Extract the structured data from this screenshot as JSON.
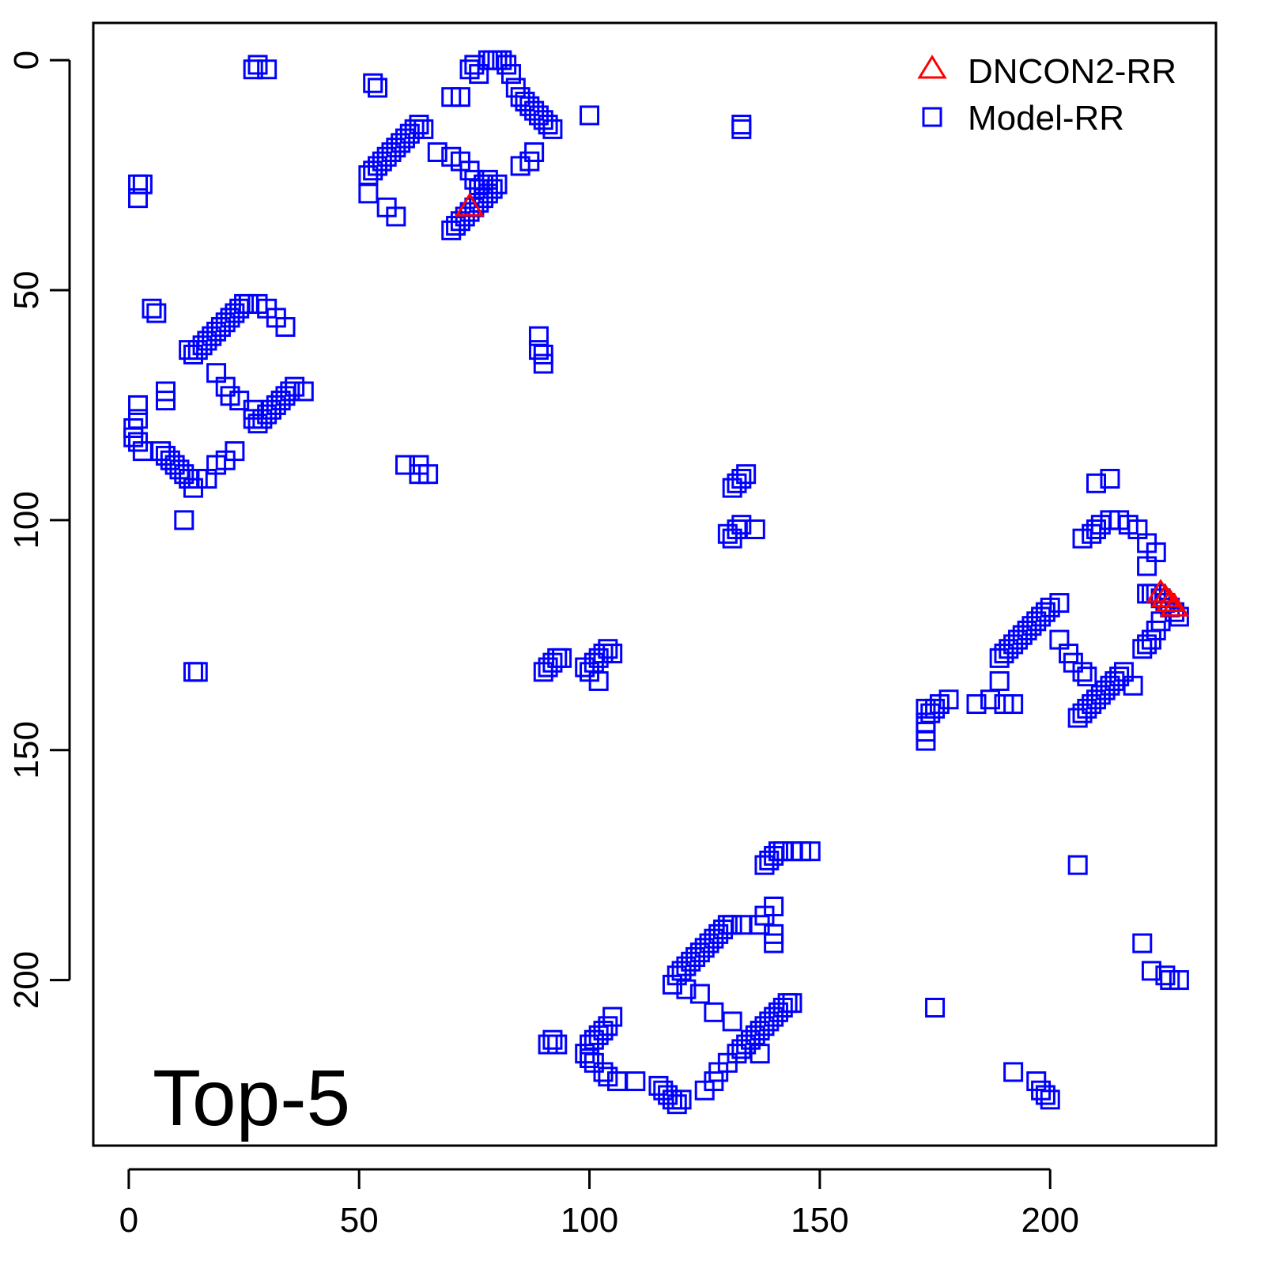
{
  "chart_data": {
    "type": "scatter",
    "title": "",
    "xlabel": "",
    "ylabel": "",
    "panel_label": "Top-5",
    "xlim": [
      -7.7,
      236
    ],
    "ylim": [
      236,
      -8.1
    ],
    "y_reversed": true,
    "grid": false,
    "legend_position": "top-right",
    "x_ticks": [
      0,
      50,
      100,
      150,
      200
    ],
    "y_ticks": [
      0,
      50,
      100,
      150,
      200
    ],
    "series": [
      {
        "name": "DNCON2-RR",
        "marker": "triangle",
        "color": "#ff0000",
        "points": [
          [
            74,
            32
          ],
          [
            224,
            116
          ],
          [
            225,
            117
          ],
          [
            226,
            118
          ],
          [
            227,
            119
          ]
        ]
      },
      {
        "name": "Model-RR",
        "marker": "square",
        "color": "#0000ff",
        "points": [
          [
            27,
            2
          ],
          [
            28,
            1
          ],
          [
            30,
            2
          ],
          [
            53,
            5
          ],
          [
            54,
            6
          ],
          [
            52,
            25
          ],
          [
            53,
            24
          ],
          [
            54,
            23
          ],
          [
            55,
            22
          ],
          [
            56,
            21
          ],
          [
            57,
            20
          ],
          [
            58,
            19
          ],
          [
            59,
            18
          ],
          [
            60,
            17
          ],
          [
            61,
            16
          ],
          [
            62,
            15
          ],
          [
            63,
            14
          ],
          [
            64,
            15
          ],
          [
            52,
            29
          ],
          [
            56,
            32
          ],
          [
            58,
            34
          ],
          [
            67,
            20
          ],
          [
            70,
            21
          ],
          [
            72,
            22
          ],
          [
            74,
            24
          ],
          [
            75,
            26
          ],
          [
            76,
            28
          ],
          [
            77,
            27
          ],
          [
            78,
            26
          ],
          [
            80,
            27
          ],
          [
            70,
            37
          ],
          [
            71,
            36
          ],
          [
            72,
            35
          ],
          [
            73,
            34
          ],
          [
            74,
            33
          ],
          [
            75,
            32
          ],
          [
            76,
            31
          ],
          [
            77,
            30
          ],
          [
            78,
            29
          ],
          [
            79,
            28
          ],
          [
            70,
            8
          ],
          [
            72,
            8
          ],
          [
            74,
            2
          ],
          [
            75,
            1
          ],
          [
            76,
            3
          ],
          [
            78,
            0
          ],
          [
            79,
            0
          ],
          [
            80,
            0
          ],
          [
            81,
            0
          ],
          [
            82,
            1
          ],
          [
            83,
            3
          ],
          [
            84,
            6
          ],
          [
            85,
            8
          ],
          [
            86,
            9
          ],
          [
            87,
            10
          ],
          [
            88,
            11
          ],
          [
            89,
            12
          ],
          [
            90,
            13
          ],
          [
            91,
            14
          ],
          [
            92,
            15
          ],
          [
            88,
            20
          ],
          [
            87,
            22
          ],
          [
            85,
            23
          ],
          [
            100,
            12
          ],
          [
            133,
            14
          ],
          [
            133,
            15
          ],
          [
            2,
            27
          ],
          [
            3,
            27
          ],
          [
            2,
            30
          ],
          [
            5,
            54
          ],
          [
            6,
            55
          ],
          [
            13,
            63
          ],
          [
            14,
            64
          ],
          [
            15,
            63
          ],
          [
            16,
            62
          ],
          [
            17,
            61
          ],
          [
            18,
            60
          ],
          [
            19,
            59
          ],
          [
            20,
            58
          ],
          [
            21,
            57
          ],
          [
            22,
            56
          ],
          [
            23,
            55
          ],
          [
            24,
            54
          ],
          [
            25,
            53
          ],
          [
            26,
            53
          ],
          [
            28,
            53
          ],
          [
            30,
            54
          ],
          [
            32,
            56
          ],
          [
            34,
            58
          ],
          [
            19,
            68
          ],
          [
            21,
            71
          ],
          [
            22,
            73
          ],
          [
            24,
            74
          ],
          [
            27,
            76
          ],
          [
            27,
            78
          ],
          [
            28,
            79
          ],
          [
            29,
            78
          ],
          [
            30,
            77
          ],
          [
            31,
            76
          ],
          [
            32,
            75
          ],
          [
            33,
            74
          ],
          [
            34,
            73
          ],
          [
            35,
            72
          ],
          [
            36,
            71
          ],
          [
            38,
            72
          ],
          [
            8,
            72
          ],
          [
            8,
            74
          ],
          [
            2,
            75
          ],
          [
            2,
            78
          ],
          [
            1,
            80
          ],
          [
            1,
            82
          ],
          [
            2,
            83
          ],
          [
            3,
            85
          ],
          [
            7,
            85
          ],
          [
            8,
            86
          ],
          [
            9,
            87
          ],
          [
            10,
            88
          ],
          [
            11,
            89
          ],
          [
            12,
            90
          ],
          [
            13,
            91
          ],
          [
            14,
            93
          ],
          [
            15,
            91
          ],
          [
            17,
            91
          ],
          [
            19,
            88
          ],
          [
            21,
            87
          ],
          [
            23,
            85
          ],
          [
            12,
            100
          ],
          [
            14,
            133
          ],
          [
            15,
            133
          ],
          [
            89,
            60
          ],
          [
            89,
            63
          ],
          [
            90,
            64
          ],
          [
            90,
            66
          ],
          [
            60,
            88
          ],
          [
            63,
            88
          ],
          [
            63,
            90
          ],
          [
            65,
            90
          ],
          [
            130,
            103
          ],
          [
            131,
            104
          ],
          [
            132,
            102
          ],
          [
            133,
            101
          ],
          [
            136,
            102
          ],
          [
            131,
            93
          ],
          [
            132,
            92
          ],
          [
            133,
            91
          ],
          [
            134,
            90
          ],
          [
            90,
            133
          ],
          [
            91,
            132
          ],
          [
            92,
            131
          ],
          [
            93,
            130
          ],
          [
            94,
            130
          ],
          [
            99,
            132
          ],
          [
            100,
            133
          ],
          [
            101,
            131
          ],
          [
            102,
            130
          ],
          [
            103,
            129
          ],
          [
            104,
            128
          ],
          [
            105,
            129
          ],
          [
            102,
            135
          ],
          [
            189,
            130
          ],
          [
            190,
            129
          ],
          [
            191,
            128
          ],
          [
            192,
            127
          ],
          [
            193,
            126
          ],
          [
            194,
            125
          ],
          [
            195,
            124
          ],
          [
            196,
            123
          ],
          [
            197,
            122
          ],
          [
            198,
            121
          ],
          [
            199,
            120
          ],
          [
            200,
            119
          ],
          [
            202,
            118
          ],
          [
            202,
            126
          ],
          [
            204,
            129
          ],
          [
            205,
            131
          ],
          [
            207,
            133
          ],
          [
            208,
            134
          ],
          [
            206,
            143
          ],
          [
            207,
            142
          ],
          [
            208,
            141
          ],
          [
            209,
            140
          ],
          [
            210,
            139
          ],
          [
            211,
            138
          ],
          [
            212,
            137
          ],
          [
            213,
            136
          ],
          [
            214,
            135
          ],
          [
            215,
            134
          ],
          [
            216,
            133
          ],
          [
            218,
            136
          ],
          [
            220,
            128
          ],
          [
            221,
            127
          ],
          [
            222,
            126
          ],
          [
            223,
            124
          ],
          [
            224,
            122
          ],
          [
            189,
            135
          ],
          [
            187,
            139
          ],
          [
            184,
            140
          ],
          [
            190,
            140
          ],
          [
            192,
            140
          ],
          [
            173,
            141
          ],
          [
            173,
            144
          ],
          [
            173,
            146
          ],
          [
            173,
            148
          ],
          [
            174,
            142
          ],
          [
            175,
            141
          ],
          [
            176,
            140
          ],
          [
            178,
            139
          ],
          [
            207,
            104
          ],
          [
            209,
            103
          ],
          [
            210,
            102
          ],
          [
            211,
            101
          ],
          [
            213,
            100
          ],
          [
            215,
            100
          ],
          [
            217,
            101
          ],
          [
            219,
            102
          ],
          [
            221,
            105
          ],
          [
            223,
            107
          ],
          [
            221,
            110
          ],
          [
            210,
            92
          ],
          [
            213,
            91
          ],
          [
            221,
            116
          ],
          [
            222,
            116
          ],
          [
            223,
            116
          ],
          [
            224,
            117
          ],
          [
            225,
            118
          ],
          [
            226,
            119
          ],
          [
            227,
            120
          ],
          [
            228,
            121
          ],
          [
            206,
            175
          ],
          [
            175,
            206
          ],
          [
            220,
            192
          ],
          [
            222,
            198
          ],
          [
            225,
            199
          ],
          [
            226,
            200
          ],
          [
            228,
            200
          ],
          [
            192,
            220
          ],
          [
            197,
            222
          ],
          [
            198,
            224
          ],
          [
            199,
            225
          ],
          [
            200,
            226
          ],
          [
            92,
            213
          ],
          [
            91,
            214
          ],
          [
            93,
            214
          ],
          [
            100,
            214
          ],
          [
            101,
            213
          ],
          [
            102,
            212
          ],
          [
            103,
            211
          ],
          [
            104,
            210
          ],
          [
            105,
            208
          ],
          [
            99,
            216
          ],
          [
            100,
            217
          ],
          [
            101,
            218
          ],
          [
            103,
            220
          ],
          [
            104,
            221
          ],
          [
            106,
            222
          ],
          [
            110,
            222
          ],
          [
            115,
            223
          ],
          [
            116,
            224
          ],
          [
            117,
            225
          ],
          [
            118,
            226
          ],
          [
            119,
            227
          ],
          [
            120,
            226
          ],
          [
            125,
            224
          ],
          [
            127,
            222
          ],
          [
            128,
            220
          ],
          [
            130,
            218
          ],
          [
            132,
            216
          ],
          [
            133,
            215
          ],
          [
            134,
            214
          ],
          [
            135,
            213
          ],
          [
            136,
            212
          ],
          [
            137,
            211
          ],
          [
            138,
            210
          ],
          [
            139,
            209
          ],
          [
            140,
            208
          ],
          [
            141,
            207
          ],
          [
            142,
            206
          ],
          [
            143,
            205
          ],
          [
            144,
            205
          ],
          [
            137,
            216
          ],
          [
            131,
            209
          ],
          [
            127,
            207
          ],
          [
            124,
            203
          ],
          [
            121,
            202
          ],
          [
            118,
            201
          ],
          [
            119,
            199
          ],
          [
            120,
            198
          ],
          [
            121,
            197
          ],
          [
            122,
            196
          ],
          [
            123,
            195
          ],
          [
            124,
            194
          ],
          [
            125,
            193
          ],
          [
            126,
            192
          ],
          [
            127,
            191
          ],
          [
            128,
            190
          ],
          [
            129,
            189
          ],
          [
            130,
            188
          ],
          [
            131,
            188
          ],
          [
            133,
            188
          ],
          [
            137,
            188
          ],
          [
            138,
            186
          ],
          [
            140,
            184
          ],
          [
            140,
            190
          ],
          [
            140,
            192
          ],
          [
            138,
            175
          ],
          [
            139,
            174
          ],
          [
            140,
            173
          ],
          [
            141,
            172
          ],
          [
            142,
            172
          ],
          [
            144,
            172
          ],
          [
            146,
            172
          ],
          [
            148,
            172
          ]
        ]
      }
    ]
  }
}
